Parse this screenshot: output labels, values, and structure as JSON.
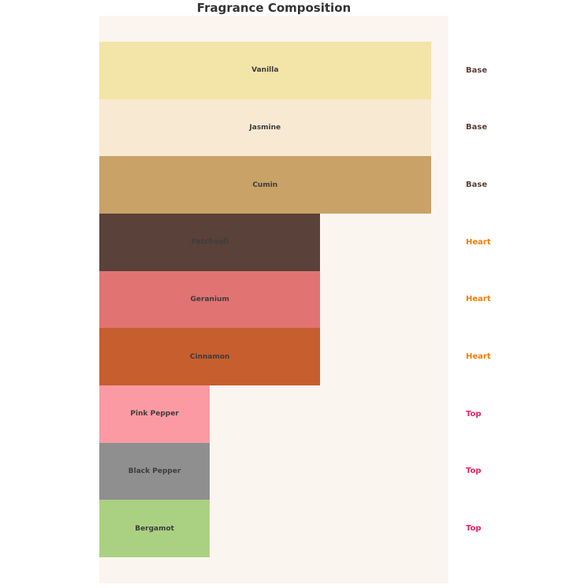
{
  "title": "Fragrance Composition",
  "colors": {
    "page_bg": "#ffffff",
    "plot_bg": "#faf5ee",
    "title_text": "#333333",
    "bar_label_text": "#3d3d3d"
  },
  "chart_data": {
    "type": "bar",
    "orientation": "horizontal",
    "title": "Fragrance Composition",
    "categories": [
      "Vanilla",
      "Jasmine",
      "Cumin",
      "Patchouli",
      "Geranium",
      "Cinnamon",
      "Pink Pepper",
      "Black Pepper",
      "Bergamot"
    ],
    "values": [
      30,
      30,
      30,
      20,
      20,
      20,
      10,
      10,
      10
    ],
    "groups": [
      "Base",
      "Base",
      "Base",
      "Heart",
      "Heart",
      "Heart",
      "Top",
      "Top",
      "Top"
    ],
    "bar_colors": [
      "#f3e4a8",
      "#f8e9d2",
      "#c9a267",
      "#5a4139",
      "#e17373",
      "#c65e2e",
      "#fb9aa3",
      "#8f8f8f",
      "#aad182"
    ],
    "group_label_colors": {
      "Base": "#5d4037",
      "Heart": "#f57c00",
      "Top": "#e91e63"
    },
    "xlim": [
      0,
      31.6
    ],
    "grid": false,
    "axes_visible": false,
    "bar_labels_inside_centered": true,
    "group_labels_position": "right"
  }
}
